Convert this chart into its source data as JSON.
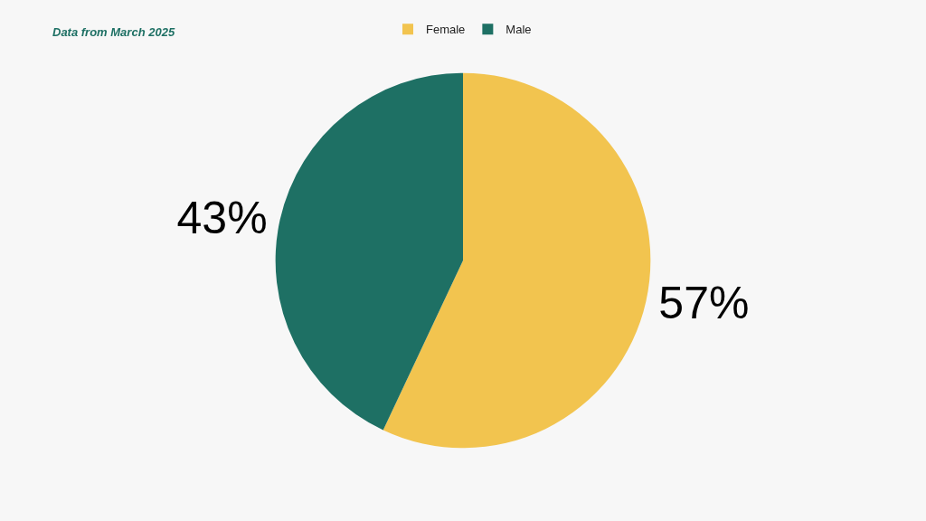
{
  "chart_data": {
    "type": "pie",
    "categories": [
      "Female",
      "Male"
    ],
    "values": [
      57,
      43
    ],
    "colors": [
      "#f2c44f",
      "#1e7064"
    ],
    "value_labels": [
      "57%",
      "43%"
    ],
    "annotations": [
      "Data from March 2025"
    ],
    "legend": "top"
  }
}
